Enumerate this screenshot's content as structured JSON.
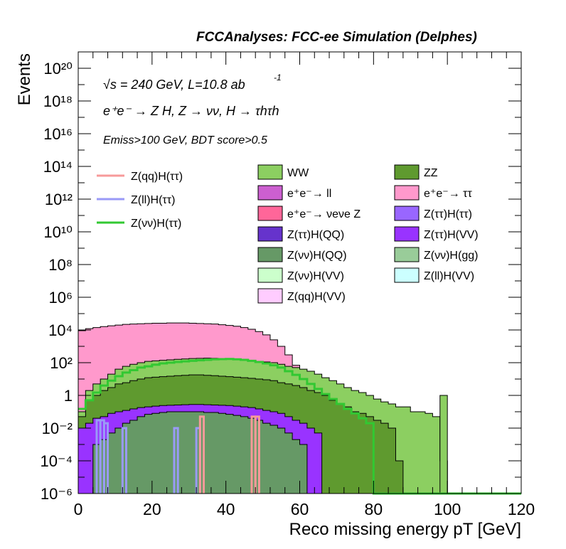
{
  "header": "FCCAnalyses: FCC-ee Simulation (Delphes)",
  "annotations": {
    "energy_lumi": "√s = 240 GeV, L=10.8 ab",
    "energy_lumi_sup": "-1",
    "process": "e⁺e⁻ → Z H, Z → νν, H → τhτh",
    "selection": "Emiss>100 GeV, BDT score>0.5"
  },
  "chart_data": {
    "type": "histogram",
    "title": "",
    "xlabel": "Reco missing energy pT [GeV]",
    "ylabel": "Events",
    "xlim": [
      0,
      120
    ],
    "ylim": [
      1e-06,
      1e+21
    ],
    "yscale": "log",
    "x_ticks": [
      "0",
      "20",
      "40",
      "60",
      "80",
      "100",
      "120"
    ],
    "y_ticks": [
      "10⁻⁶",
      "10⁻⁴",
      "10⁻²",
      "1",
      "10²",
      "10⁴",
      "10⁶",
      "10⁸",
      "10¹⁰",
      "10¹²",
      "10¹⁴",
      "10¹⁶",
      "10¹⁸",
      "10²⁰"
    ],
    "bin_width": 2,
    "legend_lines": [
      {
        "name": "Z(qq)H(ττ)",
        "color": "#f79a9a"
      },
      {
        "name": "Z(ll)H(ττ)",
        "color": "#9a9af7"
      },
      {
        "name": "Z(νν)H(ττ)",
        "color": "#32c832"
      }
    ],
    "legend_fills": [
      {
        "name": "WW",
        "color": "#8ccf61"
      },
      {
        "name": "ZZ",
        "color": "#5f9a2f"
      },
      {
        "name": "e⁺e⁻→ ll",
        "color": "#cc5fd0"
      },
      {
        "name": "e⁺e⁻→ ττ",
        "color": "#ff99cc"
      },
      {
        "name": "e⁺e⁻→ νeνe Z",
        "color": "#ff6699"
      },
      {
        "name": "Z(ττ)H(ττ)",
        "color": "#9966ff"
      },
      {
        "name": "Z(ττ)H(QQ)",
        "color": "#6633cc"
      },
      {
        "name": "Z(ττ)H(VV)",
        "color": "#9933ff"
      },
      {
        "name": "Z(νν)H(QQ)",
        "color": "#669966"
      },
      {
        "name": "Z(νν)H(gg)",
        "color": "#99cc99"
      },
      {
        "name": "Z(νν)H(VV)",
        "color": "#ccffcc"
      },
      {
        "name": "Z(ll)H(VV)",
        "color": "#ccffff"
      },
      {
        "name": "Z(qq)H(VV)",
        "color": "#ffccff"
      }
    ],
    "stacked_envelopes": [
      {
        "name": "e⁺e⁻→ ττ",
        "color": "#ff99cc",
        "values": [
          9000,
          12000,
          14000,
          16000,
          18000,
          20000,
          22000,
          23000,
          24000,
          25000,
          26000,
          26000,
          27000,
          27000,
          27000,
          26000,
          25000,
          24000,
          23000,
          21000,
          19000,
          17000,
          14000,
          11000,
          8000,
          5000,
          2500,
          1000,
          300,
          70,
          15,
          4,
          1,
          0.3,
          0,
          0,
          0,
          0,
          0,
          0,
          0,
          0,
          0,
          0,
          0,
          0,
          0,
          0,
          0,
          0,
          0,
          0,
          0,
          0,
          0,
          0,
          0,
          0,
          0,
          0
        ]
      },
      {
        "name": "e⁺e⁻→ νeνe Z",
        "color": "#ff6699",
        "values": [
          0.02,
          0.1,
          0.5,
          1.5,
          3,
          5,
          8,
          10,
          12,
          14,
          16,
          17,
          18,
          19,
          19,
          19,
          18,
          18,
          17,
          16,
          15,
          14,
          13,
          12,
          10,
          9,
          8,
          6,
          5,
          4,
          3,
          2.5,
          2,
          1.5,
          1.2,
          1,
          0.6,
          0.4,
          0.3,
          0.2,
          0.1,
          0.05,
          0.02,
          0.01,
          0.0001,
          0.0001,
          0.0001,
          0.0001,
          0.0001,
          0.0001,
          0,
          0,
          0,
          0,
          0,
          0,
          0,
          0,
          0,
          0
        ]
      },
      {
        "name": "WW",
        "color": "#8ccf61",
        "values": [
          0.1,
          2,
          5,
          10,
          20,
          40,
          60,
          80,
          100,
          120,
          130,
          140,
          150,
          160,
          170,
          180,
          185,
          190,
          185,
          180,
          170,
          160,
          150,
          140,
          120,
          110,
          100,
          80,
          60,
          50,
          40,
          30,
          20,
          12,
          8,
          5,
          3,
          2,
          1.5,
          1,
          0.6,
          0.4,
          0.3,
          0.2,
          0.2,
          0.1,
          0.1,
          0.08,
          0.05,
          0.0001,
          0,
          0,
          0,
          0,
          0,
          0,
          0,
          0,
          0,
          0
        ]
      },
      {
        "name": "ZZ",
        "color": "#5f9a2f",
        "values": [
          0.05,
          0.5,
          1,
          2,
          3,
          5,
          6,
          8,
          10,
          12,
          13,
          14,
          15,
          16,
          17,
          18,
          18,
          17,
          16,
          15,
          14,
          13,
          12,
          11,
          10,
          9,
          8,
          6,
          5,
          4,
          3,
          2,
          1.5,
          1,
          0.5,
          0.3,
          0.2,
          0.1,
          0.08,
          0.05,
          0.03,
          0.02,
          0.01,
          0.0001,
          0,
          0,
          0,
          0,
          0,
          0,
          0,
          0,
          0,
          0,
          0,
          0,
          0,
          0,
          0,
          0
        ]
      },
      {
        "name": "Z(ττ)H(VV)",
        "color": "#9933ff",
        "values": [
          0.01,
          0.02,
          0.04,
          0.05,
          0.08,
          0.1,
          0.12,
          0.15,
          0.18,
          0.2,
          0.22,
          0.24,
          0.25,
          0.26,
          0.27,
          0.28,
          0.28,
          0.27,
          0.26,
          0.25,
          0.24,
          0.22,
          0.2,
          0.18,
          0.15,
          0.12,
          0.1,
          0.08,
          0.05,
          0.03,
          0.02,
          0.01,
          0.005,
          0,
          0,
          0,
          0,
          0,
          0,
          0,
          0,
          0,
          0,
          0,
          0,
          0,
          0,
          0,
          0,
          0,
          0,
          0,
          0,
          0,
          0,
          0,
          0,
          0,
          0,
          0
        ]
      },
      {
        "name": "Z(νν)H(QQ)",
        "color": "#669966",
        "values": [
          0,
          0,
          0.001,
          0.002,
          0.005,
          0.01,
          0.02,
          0.03,
          0.05,
          0.07,
          0.08,
          0.09,
          0.1,
          0.1,
          0.1,
          0.1,
          0.1,
          0.09,
          0.09,
          0.08,
          0.07,
          0.06,
          0.05,
          0.04,
          0.03,
          0.02,
          0.015,
          0.01,
          0.005,
          0.002,
          0.001,
          0,
          0,
          0,
          0,
          0,
          0,
          0,
          0,
          0,
          0,
          0,
          0,
          0,
          0,
          0,
          0,
          0,
          0,
          0,
          0,
          0,
          0,
          0,
          0,
          0,
          0,
          0,
          0,
          0
        ]
      }
    ],
    "lines": [
      {
        "name": "Z(νν)H(ττ)",
        "color": "#32c832",
        "values": [
          0.15,
          0.5,
          1.5,
          4,
          8,
          15,
          25,
          35,
          50,
          60,
          75,
          90,
          100,
          110,
          120,
          130,
          140,
          150,
          160,
          165,
          170,
          160,
          150,
          130,
          110,
          90,
          70,
          50,
          30,
          18,
          10,
          5,
          2.5,
          1.2,
          0.6,
          0.3,
          0.15,
          0.08,
          0.04,
          0.02,
          0,
          0,
          0,
          0,
          0,
          0,
          0,
          0,
          0,
          0,
          0,
          0,
          0,
          0,
          0,
          0,
          0,
          0,
          0,
          0
        ]
      },
      {
        "name": "Z(ll)H(ττ)",
        "color": "#9a9af7",
        "spikes": [
          [
            5,
            0.03
          ],
          [
            6,
            0.03
          ],
          [
            7,
            0.02
          ],
          [
            12,
            0.01
          ],
          [
            26,
            0.01
          ],
          [
            32,
            0.01
          ]
        ]
      },
      {
        "name": "Z(qq)H(ττ)",
        "color": "#f79a9a",
        "spikes": [
          [
            33,
            0.05
          ],
          [
            47,
            0.05
          ],
          [
            48,
            0.05
          ]
        ]
      }
    ],
    "extra": {
      "ZZ_bin_98_100": 1
    }
  }
}
